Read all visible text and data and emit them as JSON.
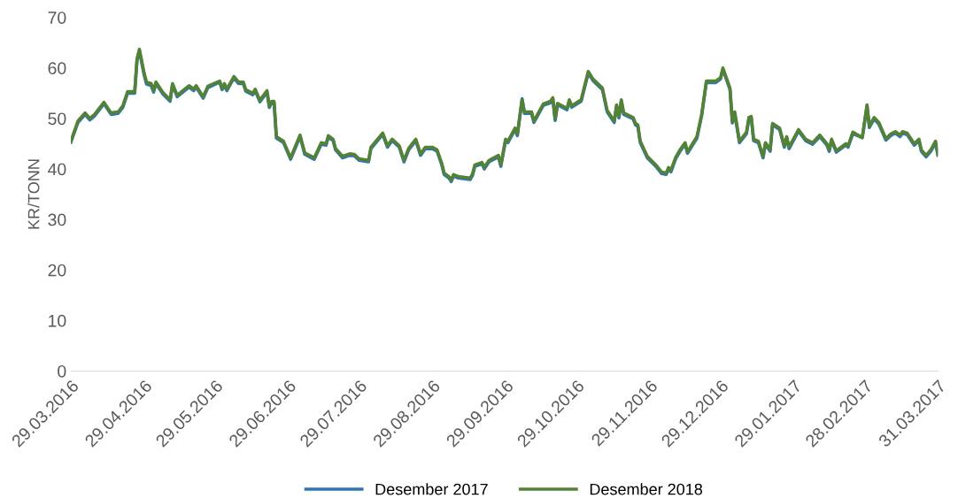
{
  "chart_data": {
    "type": "line",
    "ylabel": "KR/TONN",
    "x": [
      "2016-03-29",
      "2016-04-01",
      "2016-04-04",
      "2016-04-06",
      "2016-04-08",
      "2016-04-12",
      "2016-04-15",
      "2016-04-18",
      "2016-04-20",
      "2016-04-22",
      "2016-04-25",
      "2016-04-26",
      "2016-04-27",
      "2016-04-29",
      "2016-04-30",
      "2016-05-02",
      "2016-05-03",
      "2016-05-04",
      "2016-05-07",
      "2016-05-10",
      "2016-05-11",
      "2016-05-13",
      "2016-05-18",
      "2016-05-20",
      "2016-05-21",
      "2016-05-24",
      "2016-05-26",
      "2016-05-31",
      "2016-06-01",
      "2016-06-02",
      "2016-06-03",
      "2016-06-06",
      "2016-06-08",
      "2016-06-10",
      "2016-06-11",
      "2016-06-14",
      "2016-06-15",
      "2016-06-17",
      "2016-06-20",
      "2016-06-21",
      "2016-06-22",
      "2016-06-23",
      "2016-06-24",
      "2016-06-27",
      "2016-06-30",
      "2016-07-04",
      "2016-07-06",
      "2016-07-10",
      "2016-07-13",
      "2016-07-15",
      "2016-07-16",
      "2016-07-18",
      "2016-07-19",
      "2016-07-22",
      "2016-07-25",
      "2016-07-27",
      "2016-07-29",
      "2016-08-02",
      "2016-08-03",
      "2016-08-08",
      "2016-08-10",
      "2016-08-12",
      "2016-08-15",
      "2016-08-17",
      "2016-08-19",
      "2016-08-22",
      "2016-08-24",
      "2016-08-26",
      "2016-08-29",
      "2016-08-31",
      "2016-09-02",
      "2016-09-03",
      "2016-09-05",
      "2016-09-06",
      "2016-09-07",
      "2016-09-09",
      "2016-09-14",
      "2016-09-15",
      "2016-09-16",
      "2016-09-19",
      "2016-09-20",
      "2016-09-22",
      "2016-09-26",
      "2016-09-27",
      "2016-09-29",
      "2016-09-30",
      "2016-10-03",
      "2016-10-04",
      "2016-10-06",
      "2016-10-07",
      "2016-10-10",
      "2016-10-11",
      "2016-10-15",
      "2016-10-18",
      "2016-10-19",
      "2016-10-20",
      "2016-10-21",
      "2016-10-25",
      "2016-10-26",
      "2016-10-27",
      "2016-10-31",
      "2016-11-03",
      "2016-11-05",
      "2016-11-09",
      "2016-11-11",
      "2016-11-14",
      "2016-11-15",
      "2016-11-16",
      "2016-11-17",
      "2016-11-18",
      "2016-11-22",
      "2016-11-23",
      "2016-11-24",
      "2016-11-25",
      "2016-11-28",
      "2016-12-02",
      "2016-12-04",
      "2016-12-06",
      "2016-12-07",
      "2016-12-08",
      "2016-12-10",
      "2016-12-12",
      "2016-12-14",
      "2016-12-15",
      "2016-12-19",
      "2016-12-21",
      "2016-12-23",
      "2016-12-27",
      "2016-12-29",
      "2016-12-30",
      "2017-01-02",
      "2017-01-03",
      "2017-01-04",
      "2017-01-06",
      "2017-01-09",
      "2017-01-10",
      "2017-01-11",
      "2017-01-12",
      "2017-01-14",
      "2017-01-16",
      "2017-01-17",
      "2017-01-19",
      "2017-01-20",
      "2017-01-23",
      "2017-01-25",
      "2017-01-26",
      "2017-01-27",
      "2017-01-31",
      "2017-02-03",
      "2017-02-06",
      "2017-02-09",
      "2017-02-12",
      "2017-02-13",
      "2017-02-14",
      "2017-02-16",
      "2017-02-20",
      "2017-02-21",
      "2017-02-23",
      "2017-02-27",
      "2017-03-01",
      "2017-03-02",
      "2017-03-04",
      "2017-03-06",
      "2017-03-09",
      "2017-03-11",
      "2017-03-13",
      "2017-03-15",
      "2017-03-16",
      "2017-03-18",
      "2017-03-21",
      "2017-03-23",
      "2017-03-24",
      "2017-03-26",
      "2017-03-28",
      "2017-03-30",
      "2017-03-31"
    ],
    "series": [
      {
        "name": "Desember 2017",
        "color": "#2e75b6",
        "values": [
          45.3,
          49.2,
          50.8,
          49.7,
          50.5,
          52.9,
          50.8,
          51,
          52.2,
          55,
          55,
          61.5,
          63.4,
          58.6,
          56.8,
          56.5,
          55.2,
          56.9,
          54.8,
          53.4,
          56.6,
          54.3,
          56.2,
          55.5,
          56.2,
          54,
          56.1,
          57.2,
          55.7,
          56.6,
          55.5,
          58,
          56.9,
          56.9,
          55.4,
          54.7,
          55.5,
          53.3,
          55.2,
          52.2,
          53.1,
          53.1,
          46.1,
          45.2,
          41.9,
          46.4,
          42.9,
          41.9,
          44.9,
          44.7,
          46.3,
          45.6,
          43.8,
          42.2,
          42.7,
          42.6,
          41.7,
          41.4,
          44,
          46.8,
          44.3,
          45.6,
          44.3,
          41.4,
          43.8,
          45.6,
          42.7,
          44,
          44,
          43.5,
          40.8,
          38.9,
          38.2,
          37.5,
          38.6,
          38.2,
          37.9,
          38.7,
          40.5,
          41,
          40,
          41.4,
          42.4,
          40.5,
          45.6,
          45.2,
          47.8,
          46.6,
          53.9,
          51,
          51,
          49.2,
          52.6,
          53.1,
          53.8,
          49.6,
          52.7,
          51.7,
          53.4,
          52.2,
          53.4,
          59,
          57.5,
          55.7,
          51.3,
          49.2,
          52.4,
          50.1,
          53.4,
          50.8,
          49.9,
          48.7,
          48.4,
          45.2,
          42.2,
          40.3,
          39.1,
          38.9,
          40,
          39.4,
          42,
          43.6,
          44.9,
          43.1,
          46.1,
          50.5,
          57.1,
          57.1,
          57.8,
          59.7,
          55.7,
          49.1,
          51,
          45.2,
          47,
          49.9,
          50.1,
          45.6,
          45.2,
          42.2,
          44.9,
          43.5,
          48.7,
          47.8,
          44.3,
          46.1,
          44,
          47.5,
          45.6,
          44.9,
          46.4,
          44.7,
          43.5,
          45.6,
          43.3,
          44.7,
          44.3,
          47,
          46.2,
          52.4,
          48.2,
          49.9,
          48.9,
          45.7,
          46.6,
          47.1,
          46.4,
          47.1,
          46.8,
          44.7,
          45.6,
          43.5,
          42.4,
          43.5,
          45.2,
          42.7
        ]
      },
      {
        "name": "Desember 2018",
        "color": "#548235",
        "values": [
          45.5,
          49.5,
          51.1,
          50,
          50.8,
          53.2,
          51.1,
          51.3,
          52.5,
          55.3,
          55.3,
          61.8,
          63.7,
          59,
          57.2,
          56.9,
          55.5,
          57.2,
          55.1,
          53.7,
          56.9,
          54.6,
          56.5,
          55.8,
          56.5,
          54.3,
          56.4,
          57.4,
          56,
          56.9,
          55.8,
          58.3,
          57.2,
          57.2,
          55.7,
          55,
          55.8,
          53.6,
          55.5,
          52.5,
          53.4,
          53.4,
          46.4,
          45.5,
          42.2,
          46.7,
          43.2,
          42.2,
          45.2,
          45,
          46.6,
          45.9,
          44.1,
          42.5,
          43,
          42.9,
          42,
          41.7,
          44.3,
          47.1,
          44.6,
          45.9,
          44.6,
          41.7,
          44.1,
          45.9,
          43,
          44.3,
          44.3,
          43.8,
          41.1,
          39.2,
          38.5,
          37.8,
          38.9,
          38.5,
          38.2,
          39,
          40.8,
          41.3,
          40.3,
          41.7,
          42.7,
          40.8,
          45.9,
          45.5,
          48.1,
          46.9,
          53.7,
          51.3,
          51.3,
          49.5,
          52.9,
          53.4,
          54.1,
          49.9,
          53,
          52,
          53.7,
          52.5,
          53.7,
          59.3,
          57.8,
          56,
          51.6,
          49.5,
          52.7,
          50.4,
          53.7,
          51.1,
          50.2,
          49,
          48.7,
          45.5,
          42.5,
          40.6,
          39.4,
          39.2,
          40.3,
          39.7,
          42.3,
          43.9,
          45.2,
          43.4,
          46.4,
          50.8,
          57.4,
          57.4,
          58.1,
          60,
          56,
          49.4,
          51.3,
          45.5,
          47.3,
          50.2,
          50.4,
          45.9,
          45.5,
          42.5,
          45.2,
          43.8,
          49,
          48.1,
          44.6,
          46.4,
          44.3,
          47.8,
          45.9,
          45.2,
          46.7,
          45,
          43.8,
          45.9,
          43.6,
          45,
          44.6,
          47.3,
          46.2,
          52.7,
          48.5,
          50.2,
          49.2,
          46,
          46.9,
          47.4,
          46.7,
          47.4,
          47.1,
          45,
          45.9,
          43.8,
          42.7,
          43.8,
          45.5,
          43
        ]
      }
    ],
    "ylim": [
      0,
      70
    ],
    "yticks": [
      0,
      10,
      20,
      30,
      40,
      50,
      60,
      70
    ],
    "xlim": [
      "2016-03-29",
      "2017-03-31"
    ],
    "xticks": [
      {
        "value": "2016-03-29",
        "label": "29.03.2016"
      },
      {
        "value": "2016-04-29",
        "label": "29.04.2016"
      },
      {
        "value": "2016-05-29",
        "label": "29.05.2016"
      },
      {
        "value": "2016-06-29",
        "label": "29.06.2016"
      },
      {
        "value": "2016-07-29",
        "label": "29.07.2016"
      },
      {
        "value": "2016-08-29",
        "label": "29.08.2016"
      },
      {
        "value": "2016-09-29",
        "label": "29.09.2016"
      },
      {
        "value": "2016-10-29",
        "label": "29.10.2016"
      },
      {
        "value": "2016-11-29",
        "label": "29.11.2016"
      },
      {
        "value": "2016-12-29",
        "label": "29.12.2016"
      },
      {
        "value": "2017-01-29",
        "label": "29.01.2017"
      },
      {
        "value": "2017-02-28",
        "label": "28.02.2017"
      },
      {
        "value": "2017-03-31",
        "label": "31.03.2017"
      }
    ],
    "grid": false,
    "legend": "bottom",
    "marker": "none",
    "line_style": "solid"
  }
}
